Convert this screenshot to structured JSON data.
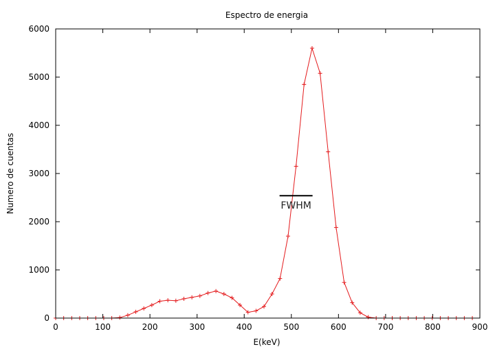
{
  "chart_data": {
    "type": "line",
    "title": "Espectro de energia",
    "xlabel": "E(keV)",
    "ylabel": "Numero de cuentas",
    "xlim": [
      0,
      900
    ],
    "ylim": [
      0,
      6000
    ],
    "xticks": [
      0,
      100,
      200,
      300,
      400,
      500,
      600,
      700,
      800,
      900
    ],
    "yticks": [
      0,
      1000,
      2000,
      3000,
      4000,
      5000,
      6000
    ],
    "grid": false,
    "legend": "none",
    "line_color": "#e41a1c",
    "marker": "plus",
    "series": [
      {
        "x": [
          0,
          17,
          34,
          51,
          68,
          85,
          102,
          119,
          136,
          153,
          170,
          187,
          204,
          221,
          238,
          255,
          272,
          289,
          306,
          323,
          340,
          357,
          374,
          391,
          408,
          425,
          442,
          459,
          476,
          493,
          510,
          527,
          544,
          561,
          578,
          595,
          612,
          629,
          646,
          663,
          680,
          697,
          714,
          731,
          748,
          765,
          782,
          799,
          816,
          833,
          850,
          867,
          884
        ],
        "y": [
          0,
          0,
          0,
          0,
          0,
          0,
          0,
          0,
          10,
          60,
          130,
          200,
          270,
          350,
          370,
          360,
          400,
          430,
          460,
          520,
          560,
          500,
          420,
          270,
          120,
          150,
          240,
          500,
          820,
          1700,
          3150,
          4850,
          5600,
          5080,
          3450,
          1880,
          740,
          320,
          110,
          20,
          0,
          0,
          0,
          0,
          0,
          0,
          0,
          0,
          0,
          0,
          0,
          0,
          0
        ]
      }
    ],
    "annotations": [
      {
        "text": "FWHM",
        "x_start": 475,
        "x_end": 545,
        "y": 2540
      }
    ]
  }
}
